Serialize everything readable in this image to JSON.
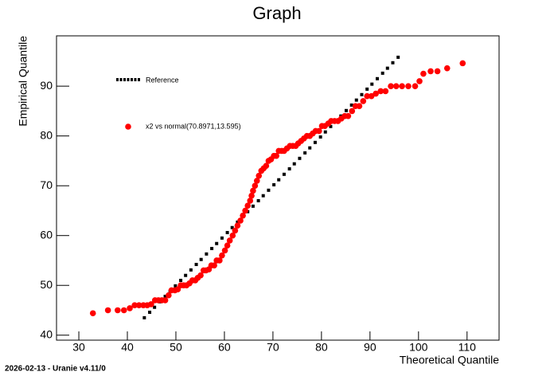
{
  "chart_data": {
    "type": "scatter",
    "title": "Graph",
    "x_label": "Theoretical Quantile",
    "y_label": "Empirical Quantile",
    "footer": "2026-02-13 - Uranie v4.11/0",
    "xlim": [
      25.4,
      116.6
    ],
    "ylim": [
      39.0,
      100.1
    ],
    "xticks": [
      30,
      40,
      50,
      60,
      70,
      80,
      90,
      100,
      110
    ],
    "yticks": [
      40,
      50,
      60,
      70,
      80,
      90
    ],
    "series": [
      {
        "name": "Reference",
        "color": "#000000",
        "x": [
          43.5,
          44.6,
          45.6,
          46.7,
          47.8,
          48.8,
          49.9,
          51.0,
          52.0,
          53.1,
          54.2,
          55.2,
          56.3,
          57.4,
          58.4,
          59.5,
          60.6,
          61.6,
          62.7,
          63.8,
          64.8,
          65.9,
          67.0,
          68.0,
          69.1,
          70.2,
          71.2,
          72.3,
          73.4,
          74.4,
          75.5,
          76.6,
          77.6,
          78.7,
          79.8,
          80.8,
          81.9,
          83.0,
          84.0,
          85.1,
          86.2,
          87.2,
          88.3,
          89.4,
          90.4,
          91.5,
          92.6,
          93.6,
          94.7,
          95.8
        ],
        "values": [
          43.5,
          44.6,
          45.6,
          46.7,
          47.8,
          48.8,
          49.9,
          51.0,
          52.0,
          53.1,
          54.2,
          55.2,
          56.3,
          57.4,
          58.4,
          59.5,
          60.6,
          61.6,
          62.7,
          63.8,
          64.8,
          65.9,
          67.0,
          68.0,
          69.1,
          70.2,
          71.2,
          72.3,
          73.4,
          74.4,
          75.5,
          76.6,
          77.6,
          78.7,
          79.8,
          80.8,
          81.9,
          83.0,
          84.0,
          85.1,
          86.2,
          87.2,
          88.3,
          89.4,
          90.4,
          91.5,
          92.6,
          93.6,
          94.7,
          95.8
        ]
      },
      {
        "name": "x2 vs normal(70.8971,13.595)",
        "color": "#ff0000",
        "x": [
          32.9,
          36,
          38,
          39.3,
          40.5,
          41.5,
          42.4,
          43.3,
          44.1,
          44.9,
          45.7,
          46.4,
          47.1,
          47.8,
          48.5,
          49.1,
          49.8,
          50.4,
          51,
          51.6,
          52.2,
          52.8,
          53.4,
          54,
          54.5,
          55.1,
          55.7,
          56.2,
          56.8,
          57.3,
          57.9,
          58.4,
          59,
          59.5,
          60.1,
          60.6,
          61.1,
          61.7,
          62.2,
          62.7,
          63.3,
          63.8,
          64.3,
          64.8,
          65.3,
          65.6,
          65.9,
          66.3,
          66.7,
          67.1,
          67.6,
          68.1,
          68.6,
          69.1,
          69.6,
          70.2,
          70.7,
          71.2,
          71.8,
          72.3,
          72.9,
          73.5,
          74.1,
          74.7,
          75.2,
          75.8,
          76.4,
          77,
          77.6,
          78.2,
          78.8,
          79.5,
          80.1,
          80.7,
          81.4,
          82,
          82.7,
          83.4,
          84.1,
          84.8,
          85.5,
          86.3,
          87,
          87.8,
          88.6,
          89.4,
          90.3,
          91.2,
          92.2,
          93.2,
          94.3,
          95.4,
          96.6,
          97.9,
          99.3,
          100.2,
          101,
          102.5,
          103.9,
          105.9,
          109.1
        ],
        "values": [
          44.4,
          45,
          45,
          45,
          45.4,
          46,
          46,
          46,
          46,
          46.2,
          47,
          47,
          47,
          47,
          48,
          49,
          49,
          49.2,
          50,
          50,
          50,
          50.4,
          51,
          51,
          51.5,
          52,
          53,
          53,
          53.2,
          54,
          54,
          55,
          55,
          56,
          57,
          58,
          59,
          60,
          61,
          62,
          63,
          64,
          65,
          66,
          67,
          68,
          69,
          70,
          71,
          72,
          73,
          73.5,
          74,
          75,
          75.3,
          76,
          76,
          77,
          77,
          77,
          77.5,
          78,
          78,
          78,
          78.5,
          79,
          79.5,
          80,
          80,
          80.5,
          81,
          81,
          82,
          82,
          82.5,
          83,
          83,
          83,
          83.5,
          84,
          84,
          85,
          86,
          86,
          87,
          88,
          88,
          88.5,
          89,
          89,
          90,
          90,
          90,
          90,
          90,
          91,
          92.5,
          93,
          93,
          93.6,
          94.6
        ]
      }
    ]
  }
}
